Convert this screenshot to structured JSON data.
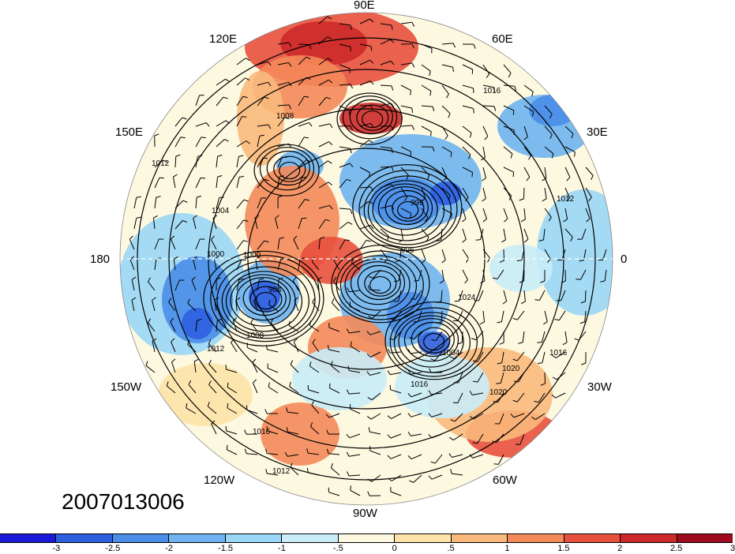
{
  "map": {
    "projection": "north polar stereographic",
    "field": "pressure contours with shaded anomaly and wind barbs",
    "lon_labels": {
      "lon_90e": "90E",
      "lon_120e": "120E",
      "lon_60e": "60E",
      "lon_150e": "150E",
      "lon_30e": "30E",
      "lon_180": "180",
      "lon_0": "0",
      "lon_150w": "150W",
      "lon_30w": "30W",
      "lon_120w": "120W",
      "lon_60w": "60W",
      "lon_90w": "90W"
    },
    "contour_labels": [
      "1016",
      "1012",
      "1008",
      "1004",
      "1000",
      "996",
      "984",
      "1020",
      "1024"
    ],
    "date_stamp": "2007013006"
  },
  "colorbar": {
    "labels": [
      "-3",
      "-2.5",
      "-2",
      "-1.5",
      "-1",
      "-.5",
      "0",
      ".5",
      "1",
      "1.5",
      "2",
      "2.5",
      "3"
    ],
    "colors": [
      "#1a1ad6",
      "#2e5fe0",
      "#4a8ee8",
      "#6fb4f0",
      "#9ad6f5",
      "#c9ecf8",
      "#fdf8e0",
      "#fde3a8",
      "#f9b97c",
      "#f48a5a",
      "#e8503e",
      "#cc2a2a",
      "#9e0b1e"
    ]
  }
}
